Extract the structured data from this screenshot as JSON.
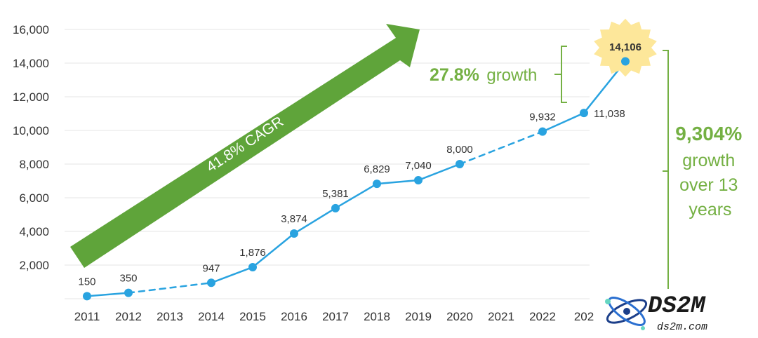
{
  "chart_data": {
    "type": "line",
    "categories": [
      "2011",
      "2012",
      "2013",
      "2014",
      "2015",
      "2016",
      "2017",
      "2018",
      "2019",
      "2020",
      "2021",
      "2022",
      "202"
    ],
    "x": [
      2011,
      2012,
      2014,
      2015,
      2016,
      2017,
      2018,
      2019,
      2020,
      2022,
      2023,
      2024
    ],
    "values": [
      150,
      350,
      947,
      1876,
      3874,
      5381,
      6829,
      7040,
      8000,
      9932,
      11038,
      14106
    ],
    "value_labels": [
      "150",
      "350",
      "947",
      "1,876",
      "3,874",
      "5,381",
      "6,829",
      "7,040",
      "8,000",
      "9,932",
      "11,038",
      "14,106"
    ],
    "dashed_segments": [
      [
        2012,
        2014
      ],
      [
        2020,
        2022
      ]
    ],
    "yticks": [
      "2,000",
      "4,000",
      "6,000",
      "8,000",
      "10,000",
      "12,000",
      "14,000",
      "16,000"
    ],
    "ytick_values": [
      2000,
      4000,
      6000,
      8000,
      10000,
      12000,
      14000,
      16000
    ],
    "ylim": [
      0,
      16000
    ],
    "grid": true,
    "line_color": "#29a3e0",
    "accent_color": "#74b043",
    "badge_color": "#fde79a",
    "annotations": {
      "cagr": "41.8% CAGR",
      "growth_pct": "27.8%",
      "growth_word": "growth",
      "total_lines": [
        "9,304%",
        "growth",
        "over 13",
        "years"
      ]
    }
  },
  "watermark": {
    "title": "DS2M",
    "url": "ds2m.com"
  }
}
